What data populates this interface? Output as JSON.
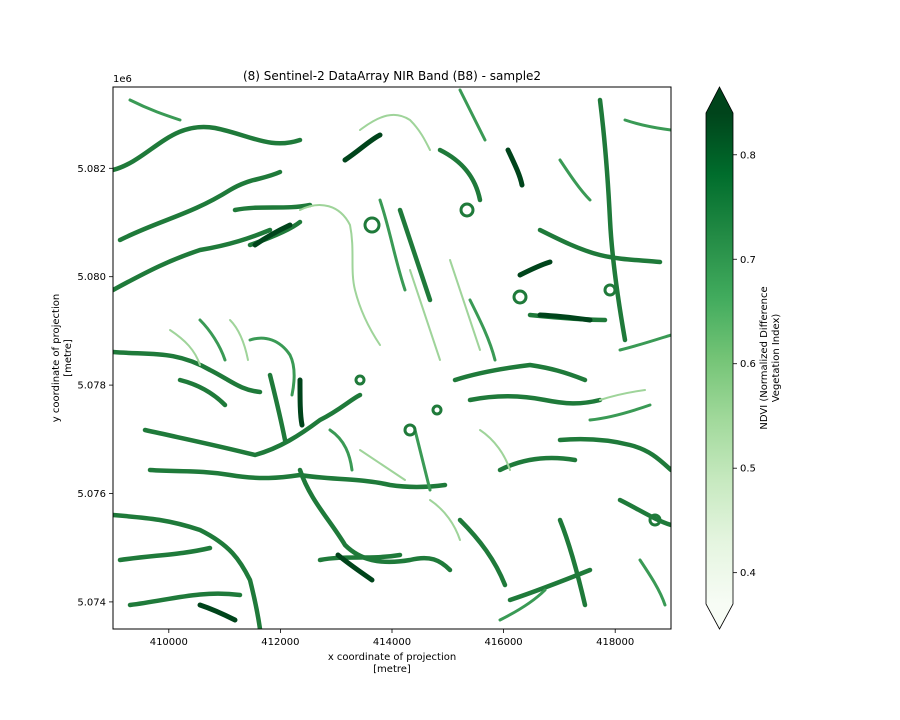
{
  "chart_data": {
    "type": "heatmap",
    "title": "(8) Sentinel-2 DataArray NIR Band (B8) - sample2",
    "xlabel_line1": "x coordinate of projection",
    "xlabel_line2": "[metre]",
    "ylabel_line1": "y coordinate of projection",
    "ylabel_line2": "[metre]",
    "y_offset_label": "1e6",
    "xlim": [
      409000,
      419000
    ],
    "ylim": [
      5073500,
      5083500
    ],
    "x_ticks": [
      410000,
      412000,
      414000,
      416000,
      418000
    ],
    "x_tick_labels": [
      "410000",
      "412000",
      "414000",
      "416000",
      "418000"
    ],
    "y_ticks": [
      5074000,
      5076000,
      5078000,
      5080000,
      5082000
    ],
    "y_tick_labels": [
      "5.074",
      "5.076",
      "5.078",
      "5.080",
      "5.082"
    ],
    "colorbar": {
      "label_line1": "NDVI (Normalized Difference",
      "label_line2": "Vegetation Index)",
      "cmap": "Greens",
      "vmin": 0.37,
      "vmax": 0.84,
      "extend": "both",
      "ticks": [
        0.4,
        0.5,
        0.6,
        0.7,
        0.8
      ],
      "tick_labels": [
        "0.4",
        "0.5",
        "0.6",
        "0.7",
        "0.8"
      ],
      "colors": [
        "#f7fcf5",
        "#e5f5e0",
        "#c7e9c0",
        "#a1d99b",
        "#74c476",
        "#41ab5d",
        "#238b45",
        "#006d2c",
        "#00441b"
      ]
    },
    "grid": false
  }
}
